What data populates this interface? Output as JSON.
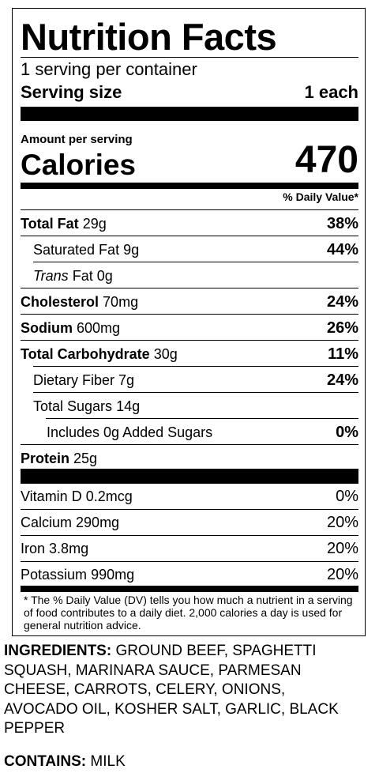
{
  "label": {
    "title": "Nutrition Facts",
    "servings_per_container": "1 serving per container",
    "serving_size_label": "Serving size",
    "serving_size_value": "1 each",
    "amount_per_serving": "Amount per serving",
    "calories_label": "Calories",
    "calories_value": "470",
    "dv_header": "% Daily Value*",
    "nutrients": [
      {
        "name": "Total Fat",
        "amount": "29g",
        "dv": "38%"
      },
      {
        "name": "Saturated Fat",
        "amount": "9g",
        "dv": "44%"
      },
      {
        "name_italic": "Trans",
        "name": "Fat",
        "amount": "0g",
        "dv": ""
      },
      {
        "name": "Cholesterol",
        "amount": "70mg",
        "dv": "24%"
      },
      {
        "name": "Sodium",
        "amount": "600mg",
        "dv": "26%"
      },
      {
        "name": "Total Carbohydrate",
        "amount": "30g",
        "dv": "11%"
      },
      {
        "name": "Dietary Fiber",
        "amount": "7g",
        "dv": "24%"
      },
      {
        "name": "Total Sugars",
        "amount": "14g",
        "dv": ""
      },
      {
        "name": "Includes 0g Added Sugars",
        "amount": "",
        "dv": "0%"
      },
      {
        "name": "Protein",
        "amount": "25g",
        "dv": ""
      }
    ],
    "vitamins": [
      {
        "name": "Vitamin D",
        "amount": "0.2mcg",
        "dv": "0%"
      },
      {
        "name": "Calcium",
        "amount": "290mg",
        "dv": "20%"
      },
      {
        "name": "Iron",
        "amount": "3.8mg",
        "dv": "20%"
      },
      {
        "name": "Potassium",
        "amount": "990mg",
        "dv": "20%"
      }
    ],
    "footnote": "* The % Daily Value (DV) tells you how much a nutrient in a serving of food contributes to a daily diet. 2,000 calories a day is used for general nutrition advice."
  },
  "ingredients": {
    "label": "INGREDIENTS:",
    "text": "GROUND BEEF, SPAGHETTI SQUASH, MARINARA SAUCE, PARMESAN CHEESE, CARROTS, CELERY, ONIONS, AVOCADO OIL, KOSHER SALT, GARLIC, BLACK PEPPER"
  },
  "contains": {
    "label": "CONTAINS:",
    "text": "MILK"
  }
}
